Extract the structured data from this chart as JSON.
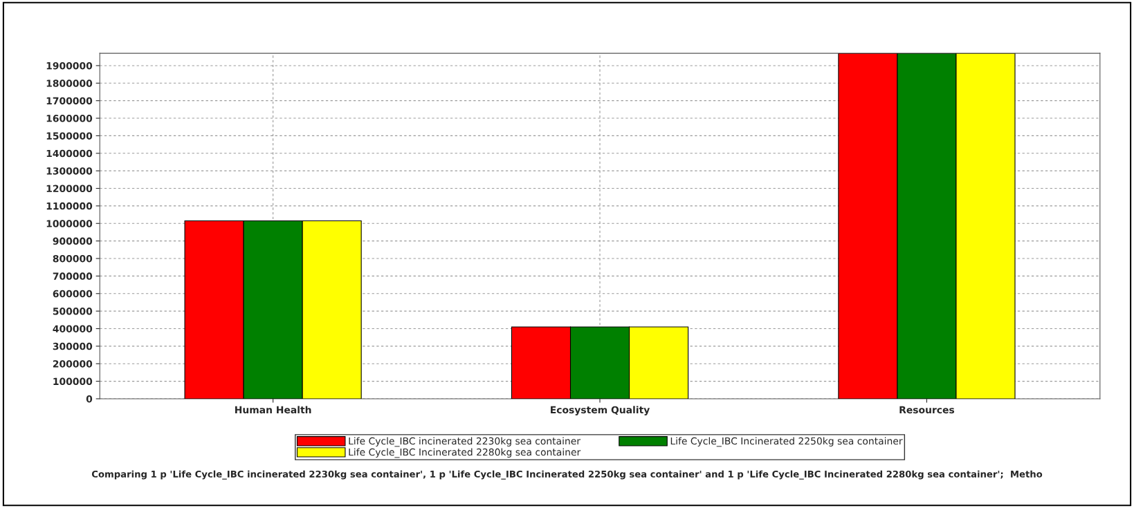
{
  "chart_data": {
    "type": "bar",
    "categories": [
      "Human Health",
      "Ecosystem Quality",
      "Resources"
    ],
    "series": [
      {
        "name": "Life Cycle_IBC incinerated 2230kg sea container",
        "color": "#ff0000",
        "values": [
          1015000,
          410000,
          1970000
        ]
      },
      {
        "name": "Life Cycle_IBC Incinerated 2250kg sea container",
        "color": "#008000",
        "values": [
          1015000,
          410000,
          1970000
        ]
      },
      {
        "name": "Life Cycle_IBC Incinerated 2280kg sea container",
        "color": "#ffff00",
        "values": [
          1015000,
          410000,
          1970000
        ]
      }
    ],
    "ylim": [
      0,
      1970000
    ],
    "yticks": [
      0,
      100000,
      200000,
      300000,
      400000,
      500000,
      600000,
      700000,
      800000,
      900000,
      1000000,
      1100000,
      1200000,
      1300000,
      1400000,
      1500000,
      1600000,
      1700000,
      1800000,
      1900000
    ],
    "grid": true,
    "legend": "bottom",
    "annotations": [
      "Comparing 1 p 'Life Cycle_IBC incinerated 2230kg sea container', 1 p 'Life Cycle_IBC Incinerated 2250kg sea container' and 1 p 'Life Cycle_IBC Incinerated 2280kg sea container';  Metho"
    ]
  }
}
